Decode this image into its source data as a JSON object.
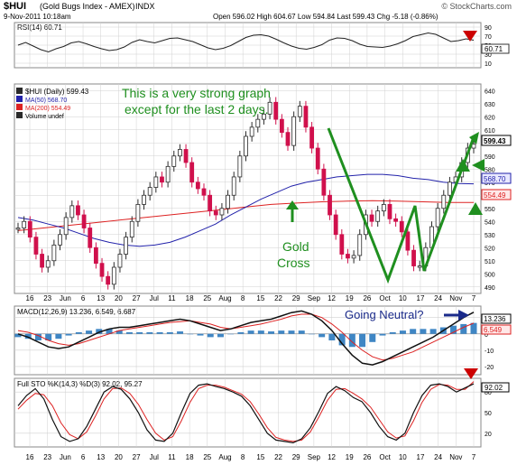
{
  "header": {
    "symbol": "$HUI",
    "name": "(Gold Bugs Index - AMEX)",
    "exchange": "INDX",
    "watermark": "© StockCharts.com",
    "date": "9-Nov-2011 10:18am",
    "quote": "Open 596.02  High 604.67  Low 594.84  Last 599.43  Chg -5.18 (-0.86%)",
    "quote_arrow": "▼"
  },
  "colors": {
    "price_up": "#2a2a2a",
    "price_down": "#d0104c",
    "ma50": "#2222aa",
    "ma200": "#dd2222",
    "green_annot": "#1f8f1f",
    "navy_annot": "#1a2a8a",
    "red_annot": "#cc0000",
    "hist": "#3f86c4",
    "grid": "#d0d0d0"
  },
  "rsi_panel": {
    "label": "RSI(14) 60.71",
    "value_tag": "60.71",
    "y_ticks": [
      "90",
      "70",
      "50",
      "30",
      "10"
    ]
  },
  "price_panel": {
    "legend": [
      {
        "text": "$HUI (Daily) 599.43",
        "color": "#2a2a2a"
      },
      {
        "text": "MA(50) 568.70",
        "color": "#2222aa"
      },
      {
        "text": "MA(200) 554.49",
        "color": "#dd2222"
      },
      {
        "text": "Volume undef",
        "color": "#2a2a2a"
      }
    ],
    "y_ticks": [
      "640",
      "630",
      "620",
      "610",
      "600",
      "590",
      "580",
      "570",
      "560",
      "550",
      "540",
      "530",
      "520",
      "510",
      "500",
      "490"
    ],
    "last_tag": "599.43",
    "ma50_tag": "568.70",
    "ma200_tag": "554.49"
  },
  "macd_panel": {
    "label": "MACD(12,26,9) 13.236, 6.549, 6.687",
    "y_ticks": [
      "10",
      "0",
      "-10",
      "-20"
    ],
    "macd_tag": "13.236",
    "signal_tag": "6.549"
  },
  "sto_panel": {
    "label": "Full STO %K(14,3) %D(3) 92.02, 95.27",
    "y_ticks": [
      "80",
      "50",
      "20"
    ],
    "value_tag": "92.02"
  },
  "x_axis_labels": [
    "16",
    "23",
    "Jun",
    "6",
    "13",
    "20",
    "27",
    "Jul",
    "11",
    "18",
    "25",
    "Aug",
    "8",
    "15",
    "22",
    "29",
    "Sep",
    "12",
    "19",
    "26",
    "Oct",
    "10",
    "17",
    "24",
    "Nov",
    "7"
  ],
  "annotations": {
    "strong_graph_line1": "This is a very strong graph",
    "strong_graph_line2": "except for the last 2 days.",
    "gold_cross_line1": "Gold",
    "gold_cross_line2": "Cross",
    "going_neutral": "Going Neutral?"
  },
  "chart_data": [
    {
      "type": "line",
      "title": "RSI(14)",
      "ylim": [
        0,
        100
      ],
      "x_range": [
        "2011-05-12",
        "2011-11-09"
      ],
      "series": [
        {
          "name": "RSI(14)",
          "values": [
            50,
            56,
            48,
            40,
            35,
            42,
            47,
            55,
            58,
            53,
            47,
            42,
            38,
            40,
            46,
            56,
            62,
            58,
            55,
            60,
            65,
            66,
            62,
            58,
            51,
            44,
            40,
            43,
            49,
            58,
            67,
            72,
            73,
            70,
            63,
            55,
            48,
            43,
            41,
            45,
            51,
            61,
            66,
            65,
            60,
            52,
            47,
            46,
            45,
            48,
            53,
            60,
            69,
            73,
            77,
            74,
            66,
            58,
            60,
            64,
            61
          ]
        }
      ]
    },
    {
      "type": "line",
      "title": "$HUI (Daily)",
      "ylim": [
        485,
        645
      ],
      "x_range": [
        "2011-05-12",
        "2011-11-09"
      ],
      "series": [
        {
          "name": "$HUI (Daily) 599.43",
          "values": [
            535,
            540,
            528,
            515,
            505,
            510,
            522,
            530,
            543,
            552,
            545,
            535,
            520,
            508,
            498,
            492,
            505,
            515,
            528,
            540,
            553,
            560,
            566,
            574,
            570,
            582,
            590,
            595,
            585,
            570,
            565,
            560,
            548,
            545,
            550,
            560,
            574,
            590,
            605,
            612,
            618,
            622,
            631,
            618,
            608,
            598,
            620,
            628,
            612,
            596,
            580,
            560,
            545,
            530,
            515,
            512,
            514,
            530,
            545,
            540,
            548,
            553,
            542,
            540,
            532,
            518,
            506,
            506,
            520,
            536,
            550,
            560,
            570,
            574,
            585,
            596,
            599
          ]
        },
        {
          "name": "MA(50) 568.70",
          "values": [
            543,
            541,
            538,
            535,
            531,
            527,
            524,
            522,
            521,
            522,
            524,
            528,
            533,
            538,
            545,
            551,
            557,
            562,
            567,
            570,
            572,
            574,
            575,
            576,
            576,
            575,
            573,
            572,
            570,
            569,
            568.7
          ]
        },
        {
          "name": "MA(200) 554.49",
          "values": [
            533,
            535,
            537,
            539,
            541,
            543,
            545,
            547,
            549,
            551,
            553,
            554,
            555,
            555.5,
            555.8,
            555.5,
            555,
            554.5,
            554.49
          ]
        }
      ]
    },
    {
      "type": "line",
      "title": "MACD(12,26,9)",
      "ylim": [
        -25,
        17
      ],
      "x_range": [
        "2011-05-12",
        "2011-11-09"
      ],
      "series": [
        {
          "name": "MACD",
          "values": [
            0,
            -2,
            -5,
            -8,
            -9,
            -8,
            -5,
            -2,
            1,
            3,
            4,
            4,
            5,
            6,
            7,
            8,
            9,
            8,
            6,
            4,
            2,
            3,
            5,
            7,
            8,
            9,
            11,
            13,
            14,
            12,
            8,
            2,
            -6,
            -13,
            -18,
            -19,
            -17,
            -14,
            -11,
            -8,
            -5,
            -2,
            2,
            6,
            10,
            13.236
          ]
        },
        {
          "name": "Signal",
          "values": [
            2,
            1,
            -1,
            -4,
            -6,
            -7,
            -6,
            -4,
            -2,
            0,
            2,
            3,
            4,
            5,
            6,
            7,
            7.5,
            8,
            7,
            6,
            4,
            3,
            4,
            5,
            6,
            7.5,
            9,
            11,
            12,
            12,
            10,
            6,
            1,
            -5,
            -10,
            -14,
            -16,
            -15,
            -13,
            -11,
            -8,
            -5,
            -2,
            1,
            4,
            6.549
          ]
        },
        {
          "name": "Histogram",
          "values": [
            -2,
            -3,
            -4,
            -4,
            -3,
            -1,
            1,
            2,
            3,
            3,
            2,
            1,
            1,
            1,
            1,
            1,
            1.5,
            0,
            -1,
            -2,
            -2,
            0,
            1,
            2,
            2,
            1.5,
            2,
            2,
            2,
            0,
            -2,
            -4,
            -7,
            -8,
            -8,
            -5,
            -1,
            1,
            2,
            3,
            3,
            3,
            4,
            5,
            6,
            6.687
          ]
        }
      ]
    },
    {
      "type": "line",
      "title": "Full STO %K(14,3) %D(3)",
      "ylim": [
        0,
        100
      ],
      "x_range": [
        "2011-05-12",
        "2011-11-09"
      ],
      "series": [
        {
          "name": "%K",
          "values": [
            60,
            75,
            85,
            70,
            40,
            15,
            8,
            12,
            30,
            55,
            80,
            88,
            84,
            70,
            50,
            25,
            10,
            8,
            20,
            50,
            78,
            90,
            92,
            88,
            85,
            80,
            74,
            60,
            40,
            20,
            10,
            8,
            6,
            12,
            28,
            52,
            78,
            88,
            82,
            72,
            66,
            50,
            30,
            15,
            10,
            20,
            50,
            75,
            90,
            92,
            88,
            80,
            86,
            92.02
          ]
        },
        {
          "name": "%D",
          "values": [
            55,
            68,
            78,
            76,
            60,
            35,
            18,
            12,
            22,
            45,
            70,
            85,
            86,
            78,
            62,
            40,
            20,
            10,
            15,
            38,
            65,
            85,
            90,
            90,
            87,
            82,
            77,
            66,
            48,
            28,
            14,
            10,
            8,
            10,
            22,
            44,
            68,
            84,
            85,
            78,
            70,
            58,
            40,
            22,
            13,
            16,
            38,
            65,
            84,
            91,
            90,
            84,
            84,
            95.27
          ]
        }
      ]
    }
  ]
}
